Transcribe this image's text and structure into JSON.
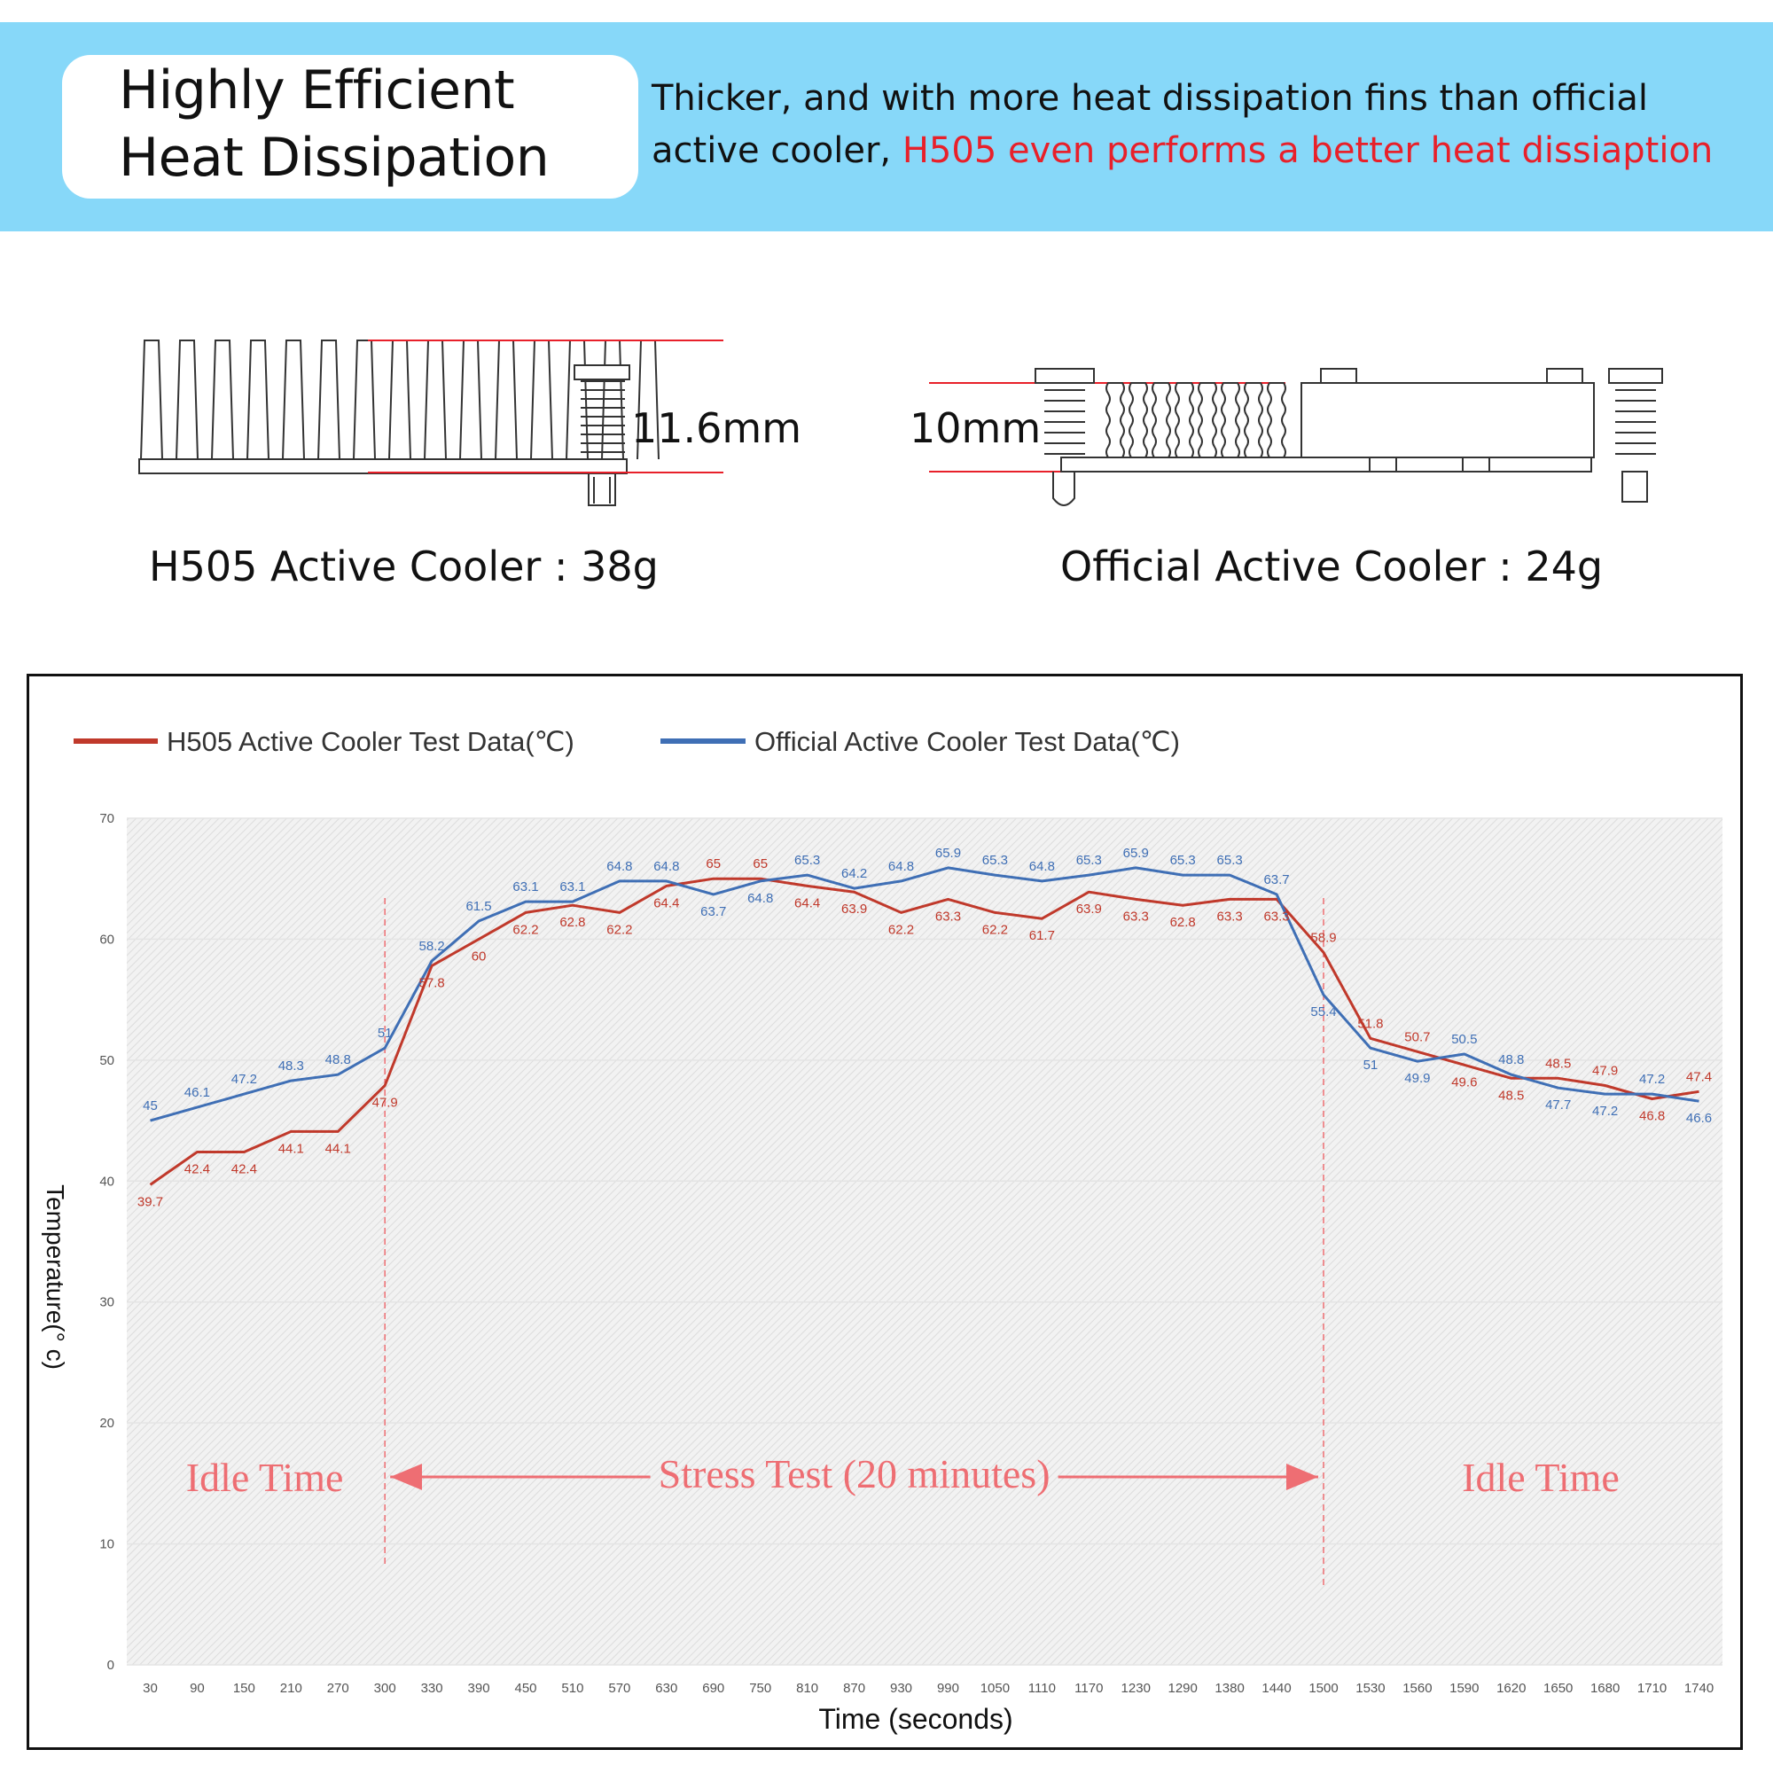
{
  "header": {
    "title_line1": "Highly Efficient",
    "title_line2": "Heat Dissipation",
    "desc_line1": "Thicker, and with more heat dissipation fins than official",
    "desc_line2_black": "active cooler, ",
    "desc_line2_red": "H505 even performs a better heat dissiaption"
  },
  "coolers": {
    "h505": {
      "dimension": "11.6mm",
      "weight_label": "H505 Active Cooler : 38g"
    },
    "official": {
      "dimension": "10mm",
      "weight_label": "Official Active Cooler : 24g"
    }
  },
  "colors": {
    "banner": "#87d8f9",
    "accent_red": "#e8202a",
    "h505_series": "#c0392b",
    "official_series": "#3f6fb5",
    "annotation": "#ee6e73"
  },
  "chart_data": {
    "type": "line",
    "xlabel": "Time (seconds)",
    "ylabel": "Temperature(° c)",
    "ylim": [
      0,
      70
    ],
    "yticks": [
      0,
      10,
      20,
      30,
      40,
      50,
      60,
      70
    ],
    "legend_position": "top-left",
    "grid": true,
    "categories": [
      "30",
      "90",
      "150",
      "210",
      "270",
      "300",
      "330",
      "390",
      "450",
      "510",
      "570",
      "630",
      "690",
      "750",
      "810",
      "870",
      "930",
      "990",
      "1050",
      "1110",
      "1170",
      "1230",
      "1290",
      "1380",
      "1440",
      "1500",
      "1530",
      "1560",
      "1590",
      "1620",
      "1650",
      "1680",
      "1710",
      "1740"
    ],
    "series": [
      {
        "name": "H505 Active Cooler Test Data(℃)",
        "values": [
          39.7,
          42.4,
          42.4,
          44.1,
          44.1,
          47.9,
          57.8,
          60,
          62.2,
          62.8,
          62.2,
          64.4,
          65,
          65,
          64.4,
          63.9,
          62.2,
          63.3,
          62.2,
          61.7,
          63.9,
          63.3,
          62.8,
          63.3,
          63.3,
          58.9,
          51.8,
          50.7,
          49.6,
          48.5,
          48.5,
          47.9,
          46.8,
          47.4
        ]
      },
      {
        "name": "Official Active Cooler Test Data(℃)",
        "values": [
          45,
          46.1,
          47.2,
          48.3,
          48.8,
          51,
          58.2,
          61.5,
          63.1,
          63.1,
          64.8,
          64.8,
          63.7,
          64.8,
          65.3,
          64.2,
          64.8,
          65.9,
          65.3,
          64.8,
          65.3,
          65.9,
          65.3,
          65.3,
          63.7,
          55.4,
          51,
          49.9,
          50.5,
          48.8,
          47.7,
          47.2,
          47.2,
          46.6
        ]
      }
    ],
    "annotations": {
      "idle_left": "Idle Time",
      "stress": "Stress Test (20 minutes)",
      "idle_right": "Idle Time"
    }
  }
}
